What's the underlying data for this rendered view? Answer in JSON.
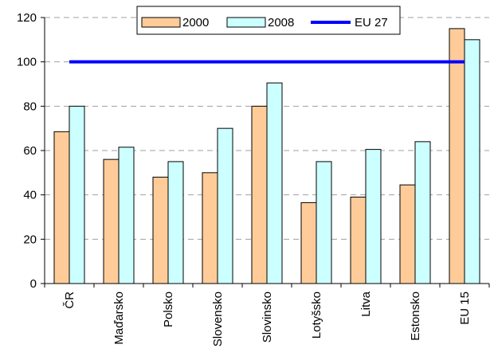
{
  "chart_data": {
    "type": "bar",
    "categories": [
      "ČR",
      "Maďarsko",
      "Polsko",
      "Slovensko",
      "Slovinsko",
      "Lotyšsko",
      "Litva",
      "Estonsko",
      "EU 15"
    ],
    "series": [
      {
        "name": "2000",
        "values": [
          68.5,
          56,
          48,
          50,
          80,
          36.5,
          39,
          44.5,
          115
        ],
        "color": "#FFCC99"
      },
      {
        "name": "2008",
        "values": [
          80,
          61.5,
          55,
          70,
          90.5,
          55,
          60.5,
          64,
          110
        ],
        "color": "#CCFFFF"
      }
    ],
    "reference_line": {
      "name": "EU 27",
      "value": 100,
      "color": "#0000FF"
    },
    "ylim": [
      0,
      120
    ],
    "yticks": [
      0,
      20,
      40,
      60,
      80,
      100,
      120
    ],
    "grid": true,
    "legend": "top-center",
    "xlabel": "",
    "ylabel": ""
  }
}
